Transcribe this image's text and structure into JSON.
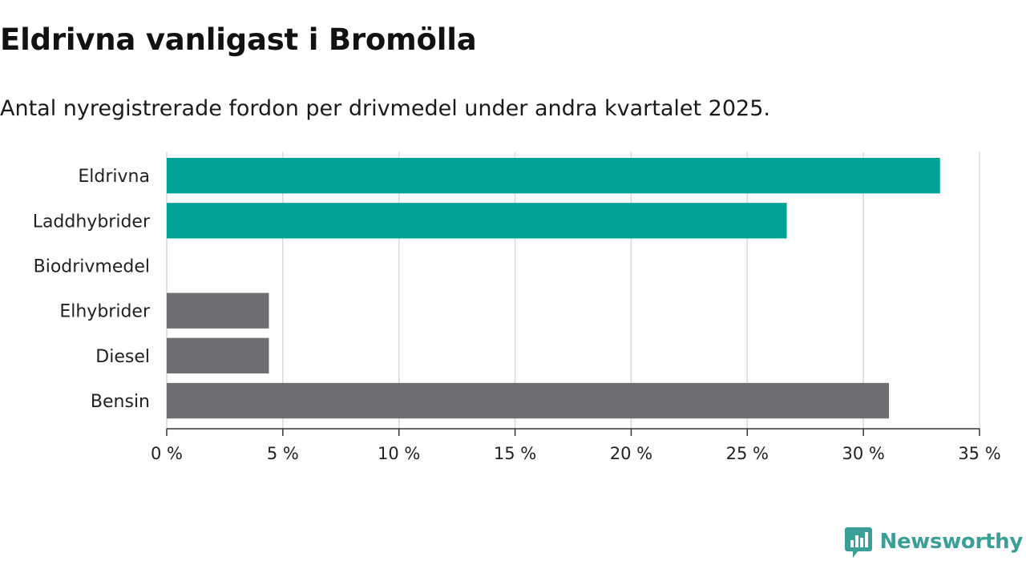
{
  "title": "Eldrivna vanligast i Bromölla",
  "subtitle": "Antal nyregistrerade fordon per drivmedel under andra kvartalet 2025.",
  "brand": {
    "name": "Newsworthy",
    "color": "#3a9f96",
    "icon": "newsworthy-logo-icon"
  },
  "chart_data": {
    "type": "bar",
    "orientation": "horizontal",
    "categories": [
      "Eldrivna",
      "Laddhybrider",
      "Biodrivmedel",
      "Elhybrider",
      "Diesel",
      "Bensin"
    ],
    "values": [
      33.3,
      26.7,
      0,
      4.4,
      4.4,
      31.1
    ],
    "colors": [
      "#00a398",
      "#00a398",
      "#00a398",
      "#6f6e73",
      "#6f6e73",
      "#6f6e73"
    ],
    "xlim": [
      0,
      35
    ],
    "ticks": [
      0,
      5,
      10,
      15,
      20,
      25,
      30,
      35
    ],
    "tick_labels": [
      "0 %",
      "5 %",
      "10 %",
      "15 %",
      "20 %",
      "25 %",
      "30 %",
      "35 %"
    ],
    "grid": true,
    "xlabel": "",
    "ylabel": ""
  }
}
